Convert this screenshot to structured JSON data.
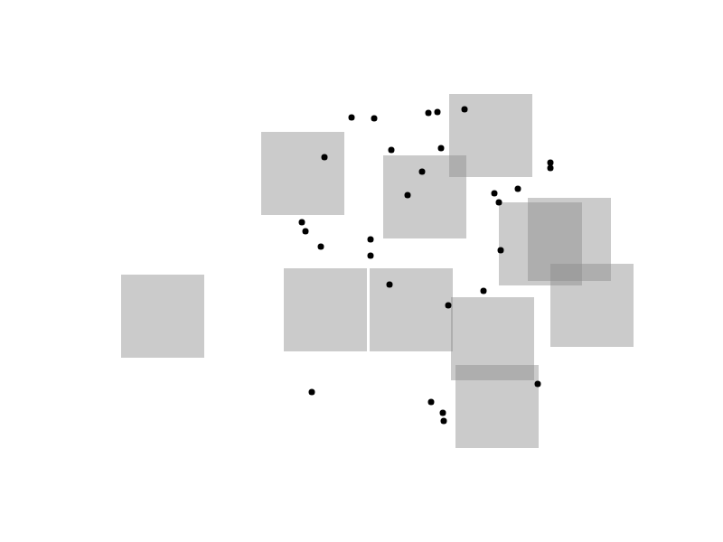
{
  "chart_data": {
    "type": "scatter",
    "tick_labels": false,
    "grid": false,
    "xlim": [
      0,
      800
    ],
    "ylim": [
      0,
      600
    ],
    "xticks": [],
    "yticks": [],
    "series": [
      {
        "color": "#8c8c8c",
        "marker": "square",
        "x": [
          335,
          543,
          470,
          598,
          630,
          180,
          360,
          455,
          655,
          545,
          550
        ],
        "values": [
          408,
          450,
          382,
          330,
          335,
          250,
          257,
          257,
          262,
          225,
          150
        ]
      },
      {
        "color": "#000000",
        "marker": "circle",
        "x": [
          389,
          414,
          474,
          484,
          514,
          609,
          609,
          433,
          488,
          359,
          467,
          451,
          547,
          573,
          552,
          334,
          338,
          355,
          410,
          410,
          554,
          431,
          535,
          496,
          345,
          477,
          490,
          491,
          595
        ],
        "values": [
          470,
          469,
          475,
          476,
          479,
          420,
          414,
          434,
          436,
          426,
          410,
          384,
          386,
          391,
          376,
          354,
          344,
          327,
          335,
          317,
          323,
          285,
          278,
          262,
          166,
          155,
          143,
          134,
          175
        ]
      }
    ]
  }
}
